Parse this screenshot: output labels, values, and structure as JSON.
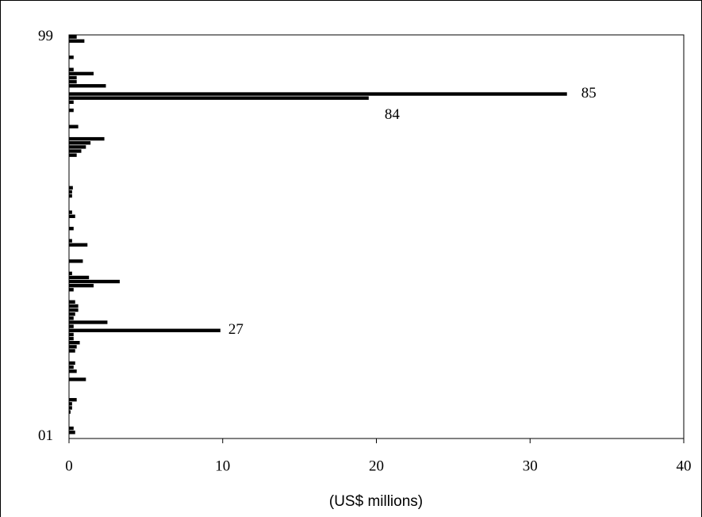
{
  "chart_data": {
    "type": "barh",
    "xlabel": "(US$ millions)",
    "categories": [
      "01",
      null,
      null,
      null,
      null,
      null,
      null,
      null,
      null,
      null,
      null,
      null,
      null,
      null,
      null,
      null,
      null,
      null,
      null,
      null,
      null,
      null,
      null,
      null,
      null,
      null,
      null,
      null,
      null,
      null,
      null,
      null,
      null,
      null,
      null,
      null,
      null,
      null,
      null,
      null,
      null,
      null,
      null,
      null,
      null,
      null,
      null,
      null,
      null,
      null,
      null,
      null,
      null,
      null,
      null,
      null,
      null,
      null,
      null,
      null,
      null,
      null,
      null,
      null,
      null,
      null,
      null,
      null,
      null,
      null,
      null,
      null,
      null,
      null,
      null,
      null,
      null,
      null,
      null,
      null,
      null,
      null,
      null,
      null,
      null,
      null,
      null,
      null,
      null,
      null,
      null,
      null,
      null,
      null,
      null,
      null,
      null,
      null,
      "99"
    ],
    "values": [
      0,
      0.4,
      0.3,
      0,
      0,
      0,
      0.1,
      0.2,
      0.2,
      0.5,
      0,
      0,
      0,
      0,
      1.1,
      0,
      0.5,
      0.3,
      0.4,
      0,
      0,
      0.4,
      0.5,
      0.7,
      0.3,
      0.3,
      9.85,
      0.3,
      2.5,
      0.3,
      0.4,
      0.6,
      0.6,
      0.4,
      0,
      0,
      0.3,
      1.6,
      3.3,
      1.3,
      0.2,
      0,
      0,
      0.9,
      0,
      0,
      0,
      1.2,
      0.2,
      0,
      0,
      0.3,
      0,
      0,
      0.4,
      0.2,
      0,
      0,
      0,
      0.2,
      0.2,
      0.25,
      0,
      0,
      0,
      0,
      0,
      0,
      0,
      0.5,
      0.8,
      1.1,
      1.4,
      2.3,
      0,
      0,
      0.6,
      0,
      0,
      0,
      0.3,
      0,
      0.3,
      19.5,
      32.4,
      0,
      2.4,
      0.5,
      0.5,
      1.6,
      0.3,
      0,
      0,
      0.3,
      0,
      0,
      0,
      1.0,
      0.5
    ],
    "color": "#000000",
    "xlim": [
      0,
      40
    ],
    "xticks": [
      0,
      10,
      20,
      30,
      40
    ],
    "annotations": [
      {
        "text": "85",
        "category": 85
      },
      {
        "text": "84",
        "category": 84
      },
      {
        "text": "27",
        "category": 27
      }
    ]
  }
}
